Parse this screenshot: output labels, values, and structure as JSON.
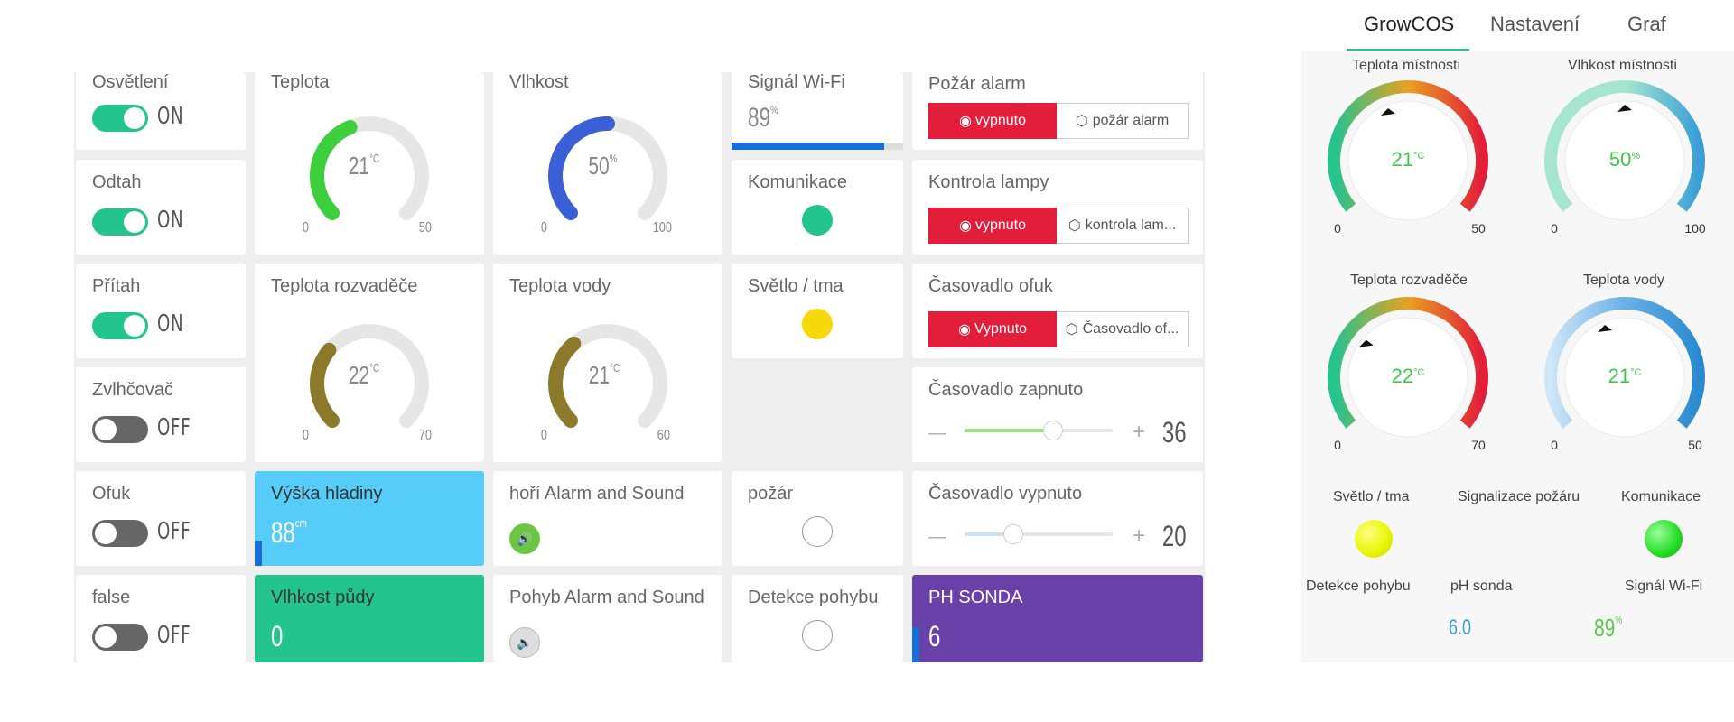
{
  "tabs": [
    "GrowCOS",
    "Nastavení",
    "Graf"
  ],
  "switches": [
    {
      "label": "Osvětlení",
      "state": "ON"
    },
    {
      "label": "Odtah",
      "state": "ON"
    },
    {
      "label": "Přítah",
      "state": "ON"
    },
    {
      "label": "Zvlhčovač",
      "state": "OFF"
    },
    {
      "label": "Ofuk",
      "state": "OFF"
    },
    {
      "label": "false",
      "state": "OFF"
    }
  ],
  "gauges": {
    "teplota": {
      "label": "Teplota",
      "value": "21",
      "unit": "°C",
      "min": "0",
      "max": "50",
      "level": 0.42,
      "color": "#3ecf3e"
    },
    "vlhkost": {
      "label": "Vlhkost",
      "value": "50",
      "unit": "%",
      "min": "0",
      "max": "100",
      "level": 0.5,
      "color": "#3a5fd6"
    },
    "teplota_rozvadece": {
      "label": "Teplota rozvaděče",
      "value": "22",
      "unit": "°C",
      "min": "0",
      "max": "70",
      "level": 0.314,
      "color": "#8c7a2a"
    },
    "teplota_vody": {
      "label": "Teplota vody",
      "value": "21",
      "unit": "°C",
      "min": "0",
      "max": "60",
      "level": 0.35,
      "color": "#8c7a2a"
    }
  },
  "wifi": {
    "label": "Signál Wi-Fi",
    "value": "89",
    "unit": "%",
    "level": 0.89
  },
  "komunikace": {
    "label": "Komunikace",
    "color": "#23c48e"
  },
  "svetlo": {
    "label": "Světlo / tma",
    "color": "#f5d90a"
  },
  "pozar": {
    "label": "požár"
  },
  "detekce": {
    "label": "Detekce pohybu"
  },
  "alarms": [
    {
      "label": "Požár alarm",
      "button": "vypnuto",
      "name": "požár alarm"
    },
    {
      "label": "Kontrola lampy",
      "button": "vypnuto",
      "name": "kontrola lam..."
    },
    {
      "label": "Časovadlo ofuk",
      "button": "Vypnuto",
      "name": "Časovadlo of..."
    }
  ],
  "timer_on": {
    "label": "Časovadlo zapnuto",
    "value": "36",
    "minus": "—",
    "plus": "+",
    "level": 0.6
  },
  "timer_off": {
    "label": "Časovadlo vypnuto",
    "value": "20",
    "minus": "—",
    "plus": "+",
    "level": 0.33
  },
  "hladina": {
    "label": "Výška hladiny",
    "value": "88",
    "unit": "cm",
    "color": "#56cdf8"
  },
  "vlhkost_pudy": {
    "label": "Vlhkost půdy",
    "value": "0",
    "color": "#23c48e"
  },
  "hori_alarm": {
    "label": "hoří Alarm and Sound"
  },
  "pohyb_alarm": {
    "label": "Pohyb Alarm and Sound"
  },
  "ph": {
    "label": "PH SONDA",
    "value": "6",
    "color": "#6a41a8"
  },
  "right_panel": {
    "gauges": [
      {
        "label": "Teplota místnosti",
        "value": "21",
        "unit": "°C",
        "min": "0",
        "max": "50"
      },
      {
        "label": "Vlhkost místnosti",
        "value": "50",
        "unit": "%",
        "min": "0",
        "max": "100"
      },
      {
        "label": "Teplota rozvaděče",
        "value": "22",
        "unit": "°C",
        "min": "0",
        "max": "70"
      },
      {
        "label": "Teplota vody",
        "value": "21",
        "unit": "°C",
        "min": "0",
        "max": "50"
      }
    ],
    "svetlo_label": "Světlo / tma",
    "signalizace_label": "Signalizace požáru",
    "komunikace_label": "Komunikace",
    "detekce_label": "Detekce pohybu",
    "ph_label": "pH sonda",
    "ph_value": "6.0",
    "wifi_label": "Signál Wi-Fi",
    "wifi_value": "89",
    "wifi_unit": "%"
  }
}
